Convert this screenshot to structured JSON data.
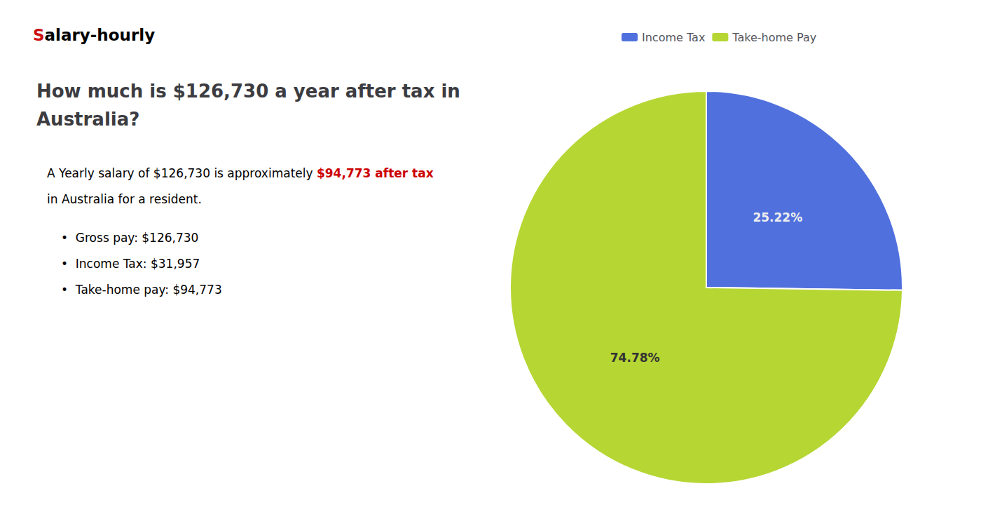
{
  "chart_data": {
    "type": "pie",
    "title": "How much is $126,730 a year after tax in\nAustralia?",
    "annotations": [
      [
        {
          "text": "S",
          "color": "#cc1111"
        },
        {
          "text": "alary-hourly"
        }
      ],
      [
        {
          "text": "A Yearly salary of $126,730 is approximately "
        },
        {
          "text": "$94,773 after tax",
          "color": "#cc0000"
        }
      ],
      [
        {
          "text": "in Australia for a resident."
        }
      ],
      [
        {
          "text": "•  Gross pay: $126,730"
        }
      ],
      [
        {
          "text": "•  Income Tax: $31,957"
        }
      ],
      [
        {
          "text": "•  Take-home pay: $94,773"
        }
      ]
    ],
    "categories": [
      "Income Tax",
      "Take-home Pay"
    ],
    "values": [
      25.22,
      74.78
    ],
    "value_labels": [
      "25.22%",
      "74.78%"
    ],
    "data_labels": true,
    "legend": "top"
  }
}
